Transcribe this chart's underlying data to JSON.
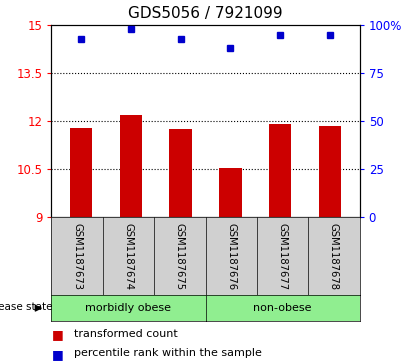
{
  "title": "GDS5056 / 7921099",
  "samples": [
    "GSM1187673",
    "GSM1187674",
    "GSM1187675",
    "GSM1187676",
    "GSM1187677",
    "GSM1187678"
  ],
  "transformed_counts": [
    11.8,
    12.2,
    11.75,
    10.55,
    11.9,
    11.85
  ],
  "percentile_ranks": [
    93,
    98,
    93,
    88,
    95,
    95
  ],
  "left_ylim": [
    9,
    15
  ],
  "right_ylim": [
    0,
    100
  ],
  "left_yticks": [
    9,
    10.5,
    12,
    13.5,
    15
  ],
  "right_yticks": [
    0,
    25,
    50,
    75,
    100
  ],
  "right_ytick_labels": [
    "0",
    "25",
    "50",
    "75",
    "100%"
  ],
  "bar_color": "#cc0000",
  "dot_color": "#0000cc",
  "groups": [
    {
      "label": "morbidly obese",
      "n": 3,
      "color": "#90ee90"
    },
    {
      "label": "non-obese",
      "n": 3,
      "color": "#90ee90"
    }
  ],
  "legend_bar_label": "transformed count",
  "legend_dot_label": "percentile rank within the sample",
  "disease_state_label": "disease state",
  "sample_box_color": "#d0d0d0"
}
